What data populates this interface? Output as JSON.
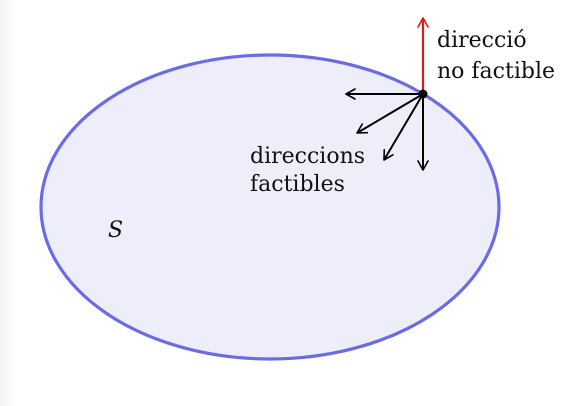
{
  "diagram": {
    "set_label": "S",
    "infeasible_label": {
      "line1": "direcció",
      "line2": "no factible"
    },
    "feasible_label": {
      "line1": "direccions",
      "line2": "factibles"
    },
    "colors": {
      "set_fill": "#eeeefb",
      "set_stroke": "#6b6be8",
      "infeasible_arrow": "#e8151b",
      "feasible_arrow": "#000000",
      "point": "#000000"
    }
  }
}
